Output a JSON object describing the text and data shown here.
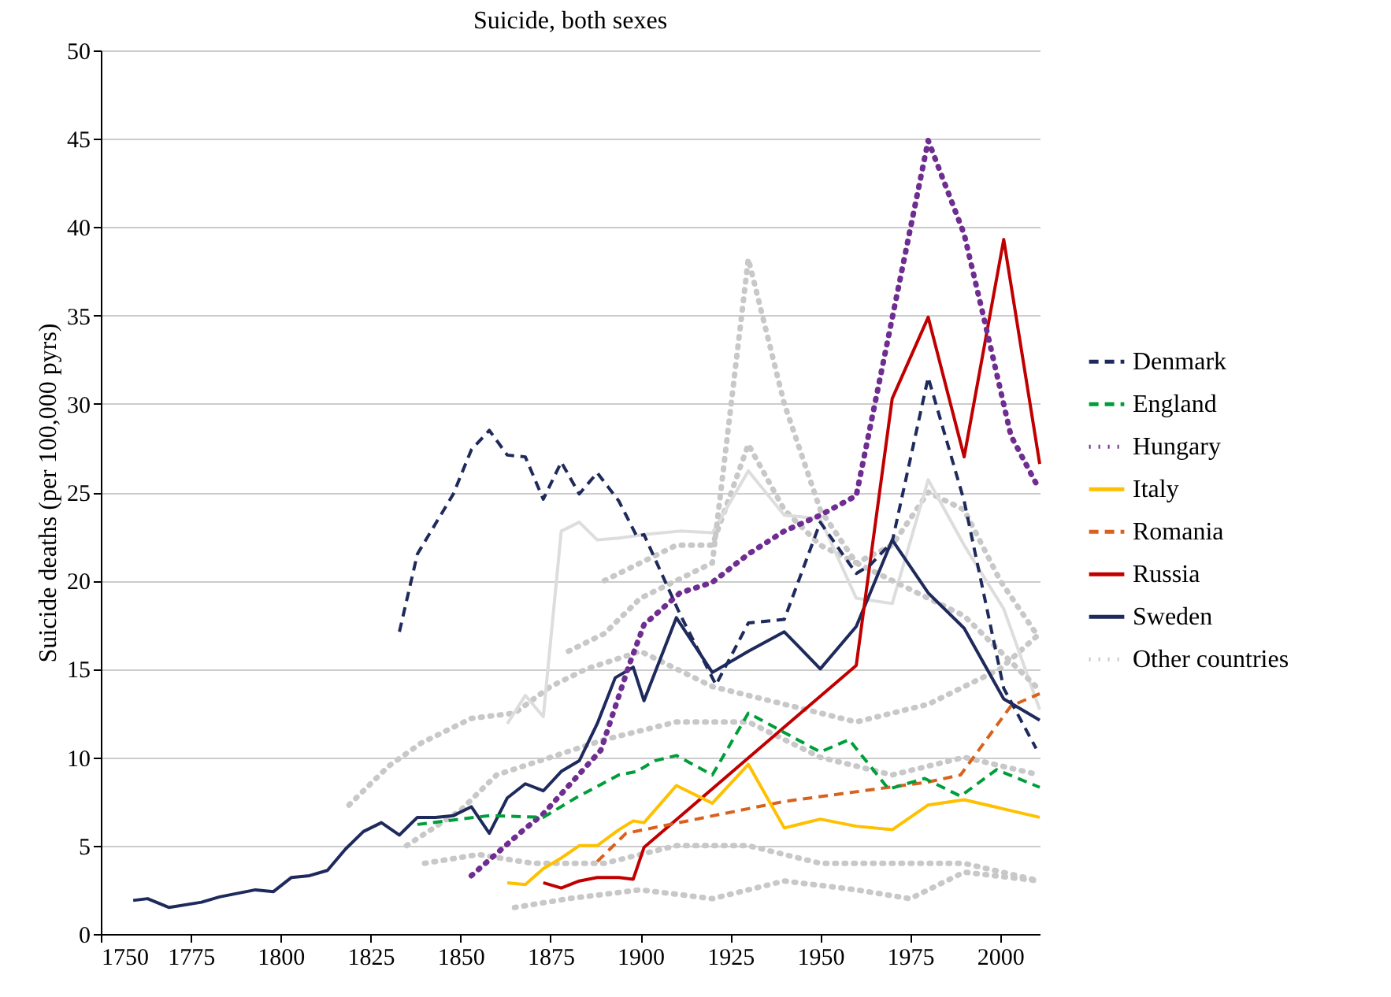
{
  "chart_data": {
    "type": "line",
    "title": "Suicide, both sexes",
    "ylabel": "Suicide deaths (per 100,000 pyrs)",
    "xlim": [
      1750,
      2011
    ],
    "xticks": [
      1750,
      1775,
      1800,
      1825,
      1850,
      1875,
      1900,
      1925,
      1950,
      1975,
      2000
    ],
    "ylim": [
      0,
      50
    ],
    "yticks": [
      0,
      5,
      10,
      15,
      20,
      25,
      30,
      35,
      40,
      45,
      50
    ],
    "grid": "y",
    "legend": "right",
    "series": [
      {
        "name": "Denmark",
        "color": "#1f2a5c",
        "line_style": "dashed",
        "x": [
          1833,
          1838,
          1848,
          1853,
          1858,
          1863,
          1868,
          1873,
          1878,
          1883,
          1888,
          1894,
          1899,
          1901,
          1911,
          1921,
          1930,
          1940,
          1950,
          1960,
          1964,
          1970,
          1980,
          1990,
          2001,
          2010
        ],
        "values": [
          17.1,
          21.5,
          24.9,
          27.4,
          28.5,
          27.1,
          27.0,
          24.6,
          26.7,
          24.9,
          26.1,
          24.5,
          22.5,
          22.6,
          18.1,
          14.1,
          17.6,
          17.8,
          23.3,
          20.4,
          20.9,
          22.2,
          31.5,
          24.5,
          13.9,
          10.5
        ]
      },
      {
        "name": "England",
        "color": "#009e3a",
        "line_style": "dashed",
        "x": [
          1838,
          1858,
          1873,
          1882,
          1894,
          1899,
          1904,
          1910,
          1920,
          1930,
          1940,
          1950,
          1958,
          1969,
          1979,
          1989,
          1999,
          2011
        ],
        "values": [
          6.2,
          6.7,
          6.6,
          7.7,
          9.0,
          9.2,
          9.8,
          10.1,
          9.0,
          12.5,
          11.4,
          10.3,
          11.0,
          8.2,
          8.8,
          7.8,
          9.3,
          8.3
        ]
      },
      {
        "name": "Hungary",
        "color": "#6f2c91",
        "line_style": "dotted",
        "x": [
          1853,
          1867,
          1873,
          1889,
          1897,
          1901,
          1911,
          1920,
          1930,
          1940,
          1950,
          1960,
          1980,
          1990,
          1996,
          2003,
          2010
        ],
        "values": [
          3.3,
          5.8,
          6.8,
          10.4,
          15.3,
          17.5,
          19.3,
          19.9,
          21.5,
          22.8,
          23.7,
          24.8,
          44.9,
          39.6,
          34.4,
          28.2,
          25.5
        ]
      },
      {
        "name": "Italy",
        "color": "#ffc000",
        "line_style": "solid",
        "x": [
          1863,
          1868,
          1873,
          1878,
          1883,
          1888,
          1894,
          1898,
          1901,
          1910,
          1920,
          1930,
          1940,
          1950,
          1960,
          1970,
          1980,
          1990,
          2011
        ],
        "values": [
          2.9,
          2.8,
          3.7,
          4.3,
          5.0,
          5.0,
          5.9,
          6.4,
          6.3,
          8.4,
          7.4,
          9.6,
          6.0,
          6.5,
          6.1,
          5.9,
          7.3,
          7.6,
          6.6
        ]
      },
      {
        "name": "Romania",
        "color": "#d8621d",
        "line_style": "dashed",
        "x": [
          1888,
          1896,
          1940,
          1980,
          1989,
          2003,
          2011
        ],
        "values": [
          4.1,
          5.7,
          7.5,
          8.6,
          9.0,
          12.9,
          13.6
        ]
      },
      {
        "name": "Russia",
        "color": "#c00000",
        "line_style": "solid",
        "x": [
          1873,
          1878,
          1883,
          1888,
          1894,
          1898,
          1901,
          1960,
          1970,
          1980,
          1990,
          2001,
          2011
        ],
        "values": [
          2.9,
          2.6,
          3.0,
          3.2,
          3.2,
          3.1,
          4.9,
          15.2,
          30.3,
          34.9,
          27.0,
          39.3,
          26.6
        ]
      },
      {
        "name": "Sweden",
        "color": "#1f2a5c",
        "line_style": "solid",
        "x": [
          1759,
          1763,
          1769,
          1778,
          1783,
          1793,
          1798,
          1803,
          1808,
          1813,
          1818,
          1823,
          1828,
          1833,
          1838,
          1843,
          1848,
          1853,
          1858,
          1863,
          1868,
          1873,
          1878,
          1883,
          1888,
          1893,
          1898,
          1901,
          1910,
          1920,
          1930,
          1940,
          1950,
          1960,
          1970,
          1980,
          1990,
          2001,
          2011
        ],
        "values": [
          1.9,
          2.0,
          1.5,
          1.8,
          2.1,
          2.5,
          2.4,
          3.2,
          3.3,
          3.6,
          4.8,
          5.8,
          6.3,
          5.6,
          6.6,
          6.6,
          6.7,
          7.2,
          5.7,
          7.7,
          8.5,
          8.1,
          9.2,
          9.8,
          11.9,
          14.5,
          15.1,
          13.2,
          17.9,
          14.8,
          16.0,
          17.1,
          15.0,
          17.4,
          22.3,
          19.3,
          17.3,
          13.3,
          12.1
        ]
      },
      {
        "name": "Other countries",
        "color": "#c8c8c8",
        "line_style": "dotted",
        "x": [
          1880,
          1890,
          1900,
          1910,
          1920,
          1930,
          1940,
          1950,
          1960,
          1970,
          1980,
          1990,
          2000,
          2010
        ],
        "values": [
          16,
          17,
          19,
          20,
          21,
          38.2,
          30,
          24,
          21,
          20,
          19,
          18,
          16,
          14
        ]
      },
      {
        "color": "#dddddd",
        "line_style": "solid",
        "x": [
          1863,
          1868,
          1873,
          1878,
          1883,
          1888,
          1894,
          1901,
          1911,
          1920,
          1930,
          1940,
          1950,
          1960,
          1970,
          1980,
          1990,
          2001,
          2011
        ],
        "values": [
          11.9,
          13.5,
          12.3,
          22.8,
          23.3,
          22.3,
          22.4,
          22.6,
          22.8,
          22.7,
          26.2,
          23.7,
          23.5,
          19.0,
          18.7,
          25.7,
          22.0,
          18.4,
          12.7
        ]
      },
      {
        "color": "#c8c8c8",
        "line_style": "dotted",
        "x": [
          1890,
          1900,
          1910,
          1920,
          1930,
          1940,
          1950,
          1960,
          1970,
          1980,
          1990,
          2000,
          2010
        ],
        "values": [
          20,
          21,
          22,
          22,
          27.7,
          24,
          22,
          21,
          22,
          25,
          24,
          20,
          17
        ]
      },
      {
        "color": "#c8c8c8",
        "line_style": "dotted",
        "x": [
          1819,
          1830,
          1839,
          1853,
          1865,
          1875,
          1885,
          1900,
          1920,
          1940,
          1960,
          1980,
          2000,
          2011
        ],
        "values": [
          7.3,
          9.5,
          10.8,
          12.2,
          12.5,
          14,
          15,
          16,
          14,
          13,
          12,
          13,
          15,
          17
        ]
      },
      {
        "color": "#c8c8c8",
        "line_style": "dotted",
        "x": [
          1835,
          1850,
          1860,
          1875,
          1890,
          1910,
          1930,
          1950,
          1970,
          1990,
          2011
        ],
        "values": [
          5,
          7,
          9,
          10,
          11,
          12,
          12,
          10,
          9,
          10,
          9
        ]
      },
      {
        "color": "#c8c8c8",
        "line_style": "dotted",
        "x": [
          1840,
          1855,
          1870,
          1890,
          1910,
          1930,
          1950,
          1970,
          1990,
          2011
        ],
        "values": [
          4,
          4.5,
          4,
          4,
          5,
          5,
          4,
          4,
          4,
          3
        ]
      },
      {
        "color": "#c8c8c8",
        "line_style": "dotted",
        "x": [
          1865,
          1880,
          1900,
          1920,
          1940,
          1960,
          1975,
          1990,
          2011
        ],
        "values": [
          1.5,
          2,
          2.5,
          2,
          3,
          2.5,
          2,
          3.5,
          3
        ]
      }
    ]
  }
}
